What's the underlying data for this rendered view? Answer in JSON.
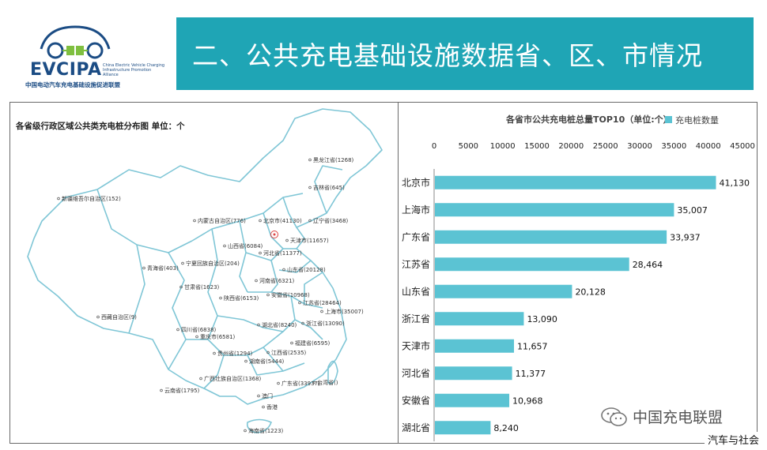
{
  "header": {
    "logo_name": "EVCIPA",
    "logo_en": "China Electric Vehicle Charging Infrastructure Promotion Alliance",
    "logo_cn": "中国电动汽车充电基础设施促进联盟",
    "title": "二、公共充电基础设施数据省、区、市情况"
  },
  "map": {
    "caption": "各省级行政区域公共类充电桩分布图  单位：个",
    "labels": [
      "黑龙江省(1268)",
      "吉林省(645)",
      "新疆维吾尔自治区(152)",
      "内蒙古自治区(776)",
      "北京市(41130)",
      "辽宁省(3468)",
      "天津市(11657)",
      "山西省(6084)",
      "河北省(11377)",
      "青海省(403)",
      "宁夏回族自治区(204)",
      "山东省(20128)",
      "河南省(6321)",
      "甘肃省(1623)",
      "陕西省(6153)",
      "安徽省(10968)",
      "江苏省(28464)",
      "上海市(35007)",
      "西藏自治区(9)",
      "湖北省(8240)",
      "浙江省(13090)",
      "四川省(6838)",
      "重庆市(6581)",
      "福建省(6595)",
      "贵州省(1294)",
      "江西省(2535)",
      "湖南省(5444)",
      "广西壮族自治区(1368)",
      "云南省(1795)",
      "广东省(33937)",
      "澳门",
      "香港",
      "海南省(1223)",
      "台湾省()"
    ]
  },
  "chart_data": {
    "type": "bar",
    "orientation": "horizontal",
    "title": "各省市公共充电桩总量TOP10（单位:个）",
    "categories": [
      "北京市",
      "上海市",
      "广东省",
      "江苏省",
      "山东省",
      "浙江省",
      "天津市",
      "河北省",
      "安徽省",
      "湖北省"
    ],
    "series": [
      {
        "name": "充电桩数量",
        "values": [
          41130,
          35007,
          33937,
          28464,
          20128,
          13090,
          11657,
          11377,
          10968,
          8240
        ]
      }
    ],
    "value_labels": [
      "41,130",
      "35,007",
      "33,937",
      "28,464",
      "20,128",
      "13,090",
      "11,657",
      "11,377",
      "10,968",
      "8,240"
    ],
    "xlim": [
      0,
      45000
    ],
    "xticks": [
      0,
      5000,
      10000,
      15000,
      20000,
      25000,
      30000,
      35000,
      40000,
      45000
    ],
    "x_axis_position": "top",
    "legend_position": "top-right",
    "bar_color": "#5bc3d3",
    "grid": false
  },
  "watermark": {
    "text": "中国充电联盟",
    "icon": "wechat-icon"
  },
  "footer": {
    "tag": "汽车与社会"
  },
  "colors": {
    "title_bar": "#1fa5b5",
    "logo_blue": "#1b4c84",
    "logo_green": "#7fbf3f",
    "map_border": "#7fc6d6"
  }
}
